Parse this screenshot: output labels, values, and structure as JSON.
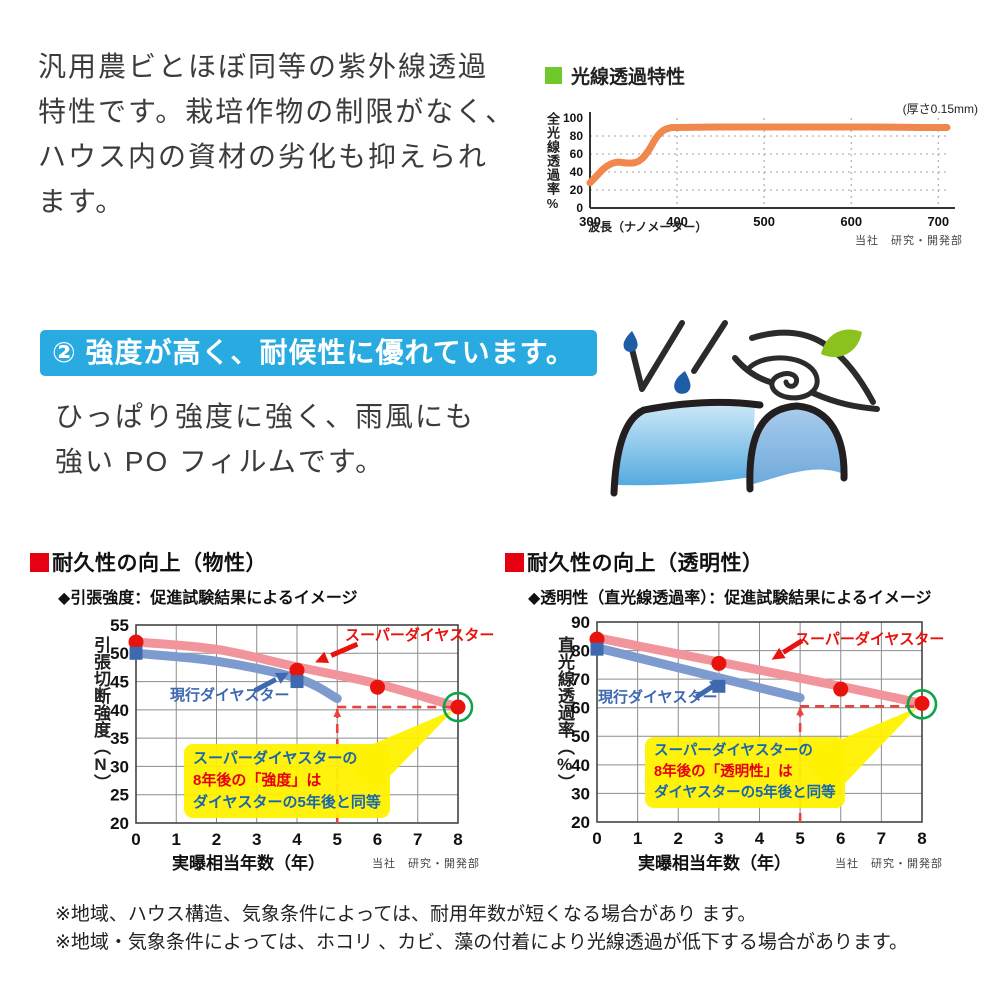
{
  "intro": {
    "lines": [
      "汎用農ビとほぼ同等の紫外線透過",
      "特性です。栽培作物の制限がなく、",
      "ハウス内の資材の劣化も抑えられ",
      "ます。"
    ]
  },
  "feature": {
    "banner": "② 強度が高く、耐候性に優れています。",
    "lines": [
      "ひっぱり強度に強く、雨風にも",
      "強い PO フィルムです。"
    ]
  },
  "light_chart": {
    "title": "光線透過特性",
    "thickness_note": "(厚さ0.15mm)",
    "ylabel": "全光線透過率%",
    "xlabel": "波長（ナノメーター）",
    "attribution": "当社　研究・開発部"
  },
  "durability_physical": {
    "title": "耐久性の向上（物性）",
    "subtitle": "◆引張強度：促進試験結果によるイメージ",
    "ylabel": "引張切断強度（N）",
    "xlabel": "実曝相当年数（年）",
    "attribution": "当社　研究・開発部",
    "label_super": "スーパーダイヤスター",
    "label_current": "現行ダイヤスター",
    "callout": [
      "スーパーダイヤスターの",
      "8年後の「強度」は",
      "ダイヤスターの5年後と同等"
    ]
  },
  "durability_clarity": {
    "title": "耐久性の向上（透明性）",
    "subtitle": "◆透明性（直光線透過率）：促進試験結果によるイメージ",
    "ylabel": "直光線透過率（%）",
    "xlabel": "実曝相当年数（年）",
    "attribution": "当社　研究・開発部",
    "label_super": "スーパーダイヤスター",
    "label_current": "現行ダイヤスター",
    "callout": [
      "スーパーダイヤスターの",
      "8年後の「透明性」は",
      "ダイヤスターの5年後と同等"
    ]
  },
  "notes": [
    "※地域、ハウス構造、気象条件によっては、耐用年数が短くなる場合があり ます。",
    "※地域・気象条件によっては、ホコリ 、カビ、藻の付着により光線透過が低下する場合があります。"
  ],
  "colors": {
    "banner_blue": "#29ABE2",
    "title_green": "#6FC92D",
    "title_red": "#E60012",
    "curve_orange": "#F0874D",
    "band_pink": "#F2949B",
    "band_blue": "#7E9BD0",
    "dot_red": "#E8130C",
    "square_blue": "#3E68B0",
    "dash_red": "#E8433F",
    "ring_green": "#0BA64A",
    "callout_yellow": "#FFF100"
  },
  "chart_data": [
    {
      "id": "light",
      "type": "line",
      "title": "光線透過特性",
      "note": "(厚さ0.15mm)",
      "xlabel": "波長（ナノメーター）",
      "ylabel": "全光線透過率%",
      "xlim": [
        300,
        710
      ],
      "ylim": [
        0,
        100
      ],
      "xticks": [
        300,
        400,
        500,
        600,
        700
      ],
      "yticks": [
        0,
        20,
        40,
        60,
        80,
        100
      ],
      "grid": "dotted",
      "series": [
        {
          "name": "全光線透過率",
          "color": "#F0874D",
          "width": 7,
          "smooth": true,
          "points": [
            [
              300,
              28
            ],
            [
              308,
              36
            ],
            [
              316,
              44
            ],
            [
              324,
              49
            ],
            [
              332,
              51
            ],
            [
              342,
              50
            ],
            [
              352,
              50.5
            ],
            [
              360,
              55
            ],
            [
              368,
              65
            ],
            [
              376,
              78
            ],
            [
              384,
              86
            ],
            [
              392,
              89
            ],
            [
              400,
              89.5
            ],
            [
              450,
              90
            ],
            [
              500,
              90
            ],
            [
              560,
              90
            ],
            [
              620,
              90
            ],
            [
              680,
              89.5
            ],
            [
              710,
              89.5
            ]
          ]
        }
      ],
      "annotations": []
    },
    {
      "id": "phys",
      "type": "line",
      "title": "耐久性の向上（物性）",
      "subtitle": "◆引張強度：促進試験結果によるイメージ",
      "xlabel": "実曝相当年数（年）",
      "ylabel": "引張切断強度（N）",
      "xlim": [
        0,
        8
      ],
      "ylim": [
        20,
        55
      ],
      "xticks": [
        0,
        1,
        2,
        3,
        4,
        5,
        6,
        7,
        8
      ],
      "yticks": [
        20,
        25,
        30,
        35,
        40,
        45,
        50,
        55
      ],
      "grid": "solid",
      "series": [
        {
          "name": "スーパーダイヤスター",
          "color": "#F2949B",
          "width": 9,
          "smooth": true,
          "points": [
            [
              0,
              52
            ],
            [
              2,
              50.7
            ],
            [
              4,
              47.6
            ],
            [
              6,
              44.6
            ],
            [
              8,
              40.5
            ]
          ],
          "markers": {
            "shape": "circle",
            "color": "#E8130C",
            "size": 7.5,
            "points": [
              [
                0,
                52
              ],
              [
                4,
                47
              ],
              [
                6,
                44
              ],
              [
                8,
                40.5
              ]
            ]
          }
        },
        {
          "name": "現行ダイヤスター",
          "color": "#7E9BD0",
          "width": 9,
          "smooth": true,
          "points": [
            [
              0,
              50
            ],
            [
              2,
              48.6
            ],
            [
              4,
              45.6
            ],
            [
              5,
              42
            ]
          ],
          "markers": {
            "shape": "square",
            "color": "#3E68B0",
            "size": 13,
            "points": [
              [
                0,
                50
              ],
              [
                4,
                45
              ]
            ]
          }
        }
      ],
      "annotations": [
        {
          "type": "poly",
          "points": [
            [
              5.07,
              31.5
            ],
            [
              7.9,
              40
            ],
            [
              5.9,
              25.3
            ]
          ],
          "fill": "#FFF100",
          "opacity": 0.95
        },
        {
          "type": "dash",
          "from": [
            5,
            20
          ],
          "to": [
            5,
            40.2
          ],
          "arrow": true
        },
        {
          "type": "dash",
          "from": [
            5,
            40.5
          ],
          "to": [
            8,
            40.5
          ]
        },
        {
          "type": "ring",
          "at": [
            8,
            40.5
          ],
          "r": 14
        },
        {
          "type": "arrow",
          "from": [
            5.5,
            51.6
          ],
          "to": [
            4.45,
            48.4
          ],
          "color": "#E8130C"
        },
        {
          "type": "arrow",
          "from": [
            2.95,
            43.4
          ],
          "to": [
            3.8,
            46.6
          ],
          "color": "#3E68B0"
        }
      ]
    },
    {
      "id": "clar",
      "type": "line",
      "title": "耐久性の向上（透明性）",
      "subtitle": "◆透明性（直光線透過率）：促進試験結果によるイメージ",
      "xlabel": "実曝相当年数（年）",
      "ylabel": "直光線透過率（%）",
      "xlim": [
        0,
        8
      ],
      "ylim": [
        20,
        90
      ],
      "xticks": [
        0,
        1,
        2,
        3,
        4,
        5,
        6,
        7,
        8
      ],
      "yticks": [
        20,
        30,
        40,
        50,
        60,
        70,
        80,
        90
      ],
      "grid": "solid",
      "series": [
        {
          "name": "スーパーダイヤスター",
          "color": "#F2949B",
          "width": 9,
          "smooth": true,
          "points": [
            [
              0,
              84.5
            ],
            [
              3,
              76
            ],
            [
              6,
              67.5
            ],
            [
              8,
              61.5
            ]
          ],
          "markers": {
            "shape": "circle",
            "color": "#E8130C",
            "size": 7.5,
            "points": [
              [
                0,
                84
              ],
              [
                3,
                75.5
              ],
              [
                6,
                66.5
              ],
              [
                8,
                61.5
              ]
            ]
          }
        },
        {
          "name": "現行ダイヤスター",
          "color": "#7E9BD0",
          "width": 9,
          "smooth": false,
          "points": [
            [
              0,
              81
            ],
            [
              5,
              63.5
            ]
          ],
          "markers": {
            "shape": "square",
            "color": "#3E68B0",
            "size": 13,
            "points": [
              [
                0,
                80.5
              ],
              [
                3,
                67.5
              ]
            ]
          }
        }
      ],
      "annotations": [
        {
          "type": "poly",
          "points": [
            [
              5.0,
              43
            ],
            [
              7.88,
              60
            ],
            [
              5.8,
              29
            ]
          ],
          "fill": "#FFF100",
          "opacity": 0.95
        },
        {
          "type": "dash",
          "from": [
            5,
            20
          ],
          "to": [
            5,
            60.2
          ],
          "arrow": true
        },
        {
          "type": "dash",
          "from": [
            5,
            60.5
          ],
          "to": [
            8,
            60.5
          ]
        },
        {
          "type": "ring",
          "at": [
            8,
            61.2
          ],
          "r": 14
        },
        {
          "type": "arrow",
          "from": [
            5.05,
            83.5
          ],
          "to": [
            4.3,
            76.8
          ],
          "color": "#E8130C"
        },
        {
          "type": "arrow",
          "from": [
            2.45,
            63.8
          ],
          "to": [
            3.1,
            69.8
          ],
          "color": "#3E68B0"
        }
      ]
    }
  ]
}
